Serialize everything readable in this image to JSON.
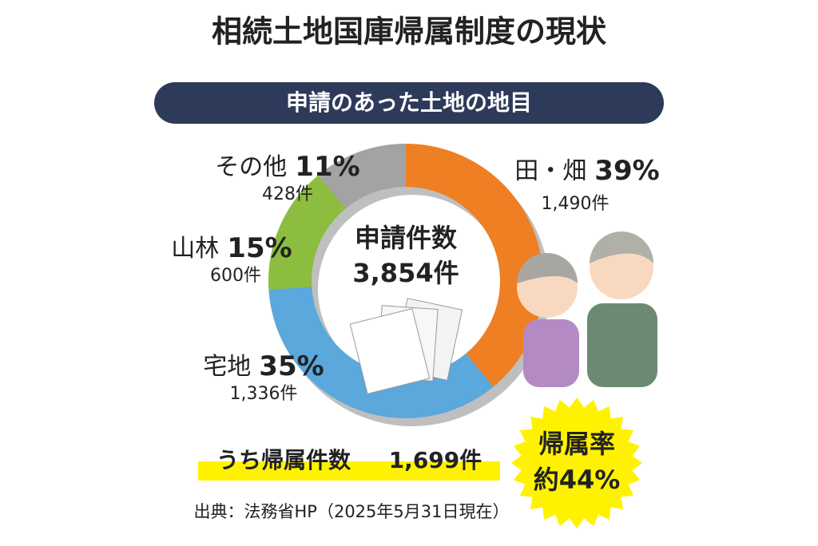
{
  "title": "相続土地国庫帰属制度の現状",
  "chart_data": {
    "type": "donut",
    "title": "申請のあった土地の地目",
    "categories": [
      "田・畑",
      "宅地",
      "山林",
      "その他"
    ],
    "values": [
      39,
      35,
      15,
      11
    ],
    "value_labels": [
      "39%",
      "35%",
      "15%",
      "11%"
    ],
    "count_labels": [
      "1,490件",
      "1,336件",
      "600件",
      "428件"
    ],
    "colors": [
      "#ee7f22",
      "#5aa8dc",
      "#8cbd3e",
      "#a3a3a3"
    ],
    "center_label": "申請件数",
    "center_value": "3,854件"
  },
  "granted": {
    "label": "うち帰属件数",
    "value": "1,699件"
  },
  "badge": {
    "label": "帰属率",
    "value": "約44%"
  },
  "source": "出典：法務省HP（2025年5月31日現在）"
}
